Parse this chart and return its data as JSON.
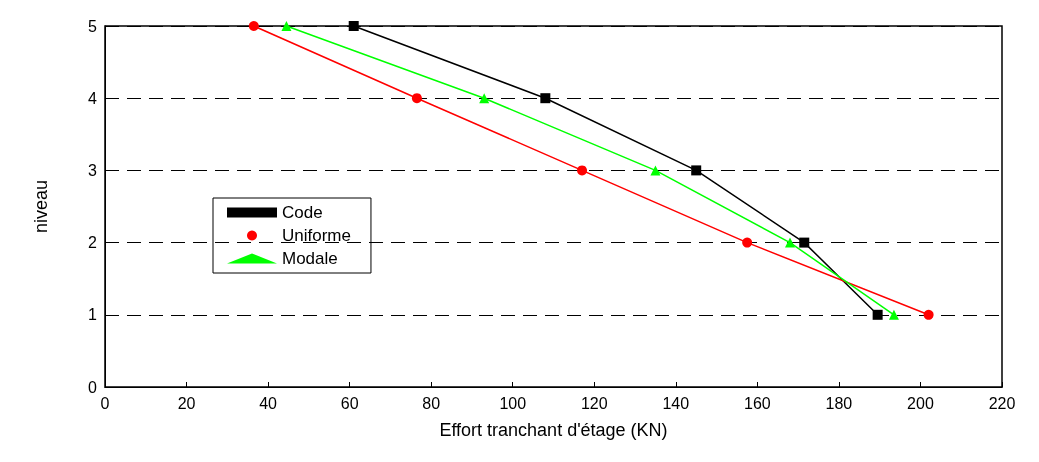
{
  "chart_data": {
    "type": "line",
    "xlabel": "Effort tranchant d'étage (KN)",
    "ylabel": "niveau",
    "xlim": [
      0,
      220
    ],
    "xticks": [
      0,
      20,
      40,
      60,
      80,
      100,
      120,
      140,
      160,
      180,
      200,
      220
    ],
    "ylim": [
      0,
      5
    ],
    "yticks": [
      0,
      1,
      2,
      3,
      4,
      5
    ],
    "grid": "y",
    "legend": "left",
    "line_style": "solid",
    "series": [
      {
        "name": "Code",
        "color": "#000000",
        "marker": "square",
        "x": [
          61,
          108,
          145,
          171.5,
          189.5
        ],
        "values": [
          5,
          4,
          3,
          2,
          1
        ]
      },
      {
        "name": "Uniforme",
        "color": "#ff0000",
        "marker": "circle",
        "x": [
          36.5,
          76.5,
          117,
          157.5,
          202
        ],
        "values": [
          5,
          4,
          3,
          2,
          1
        ]
      },
      {
        "name": "Modale",
        "color": "#00ff00",
        "marker": "triangle",
        "x": [
          44.5,
          93,
          135,
          168,
          193.5
        ],
        "values": [
          5,
          4,
          3,
          2,
          1
        ]
      }
    ]
  }
}
